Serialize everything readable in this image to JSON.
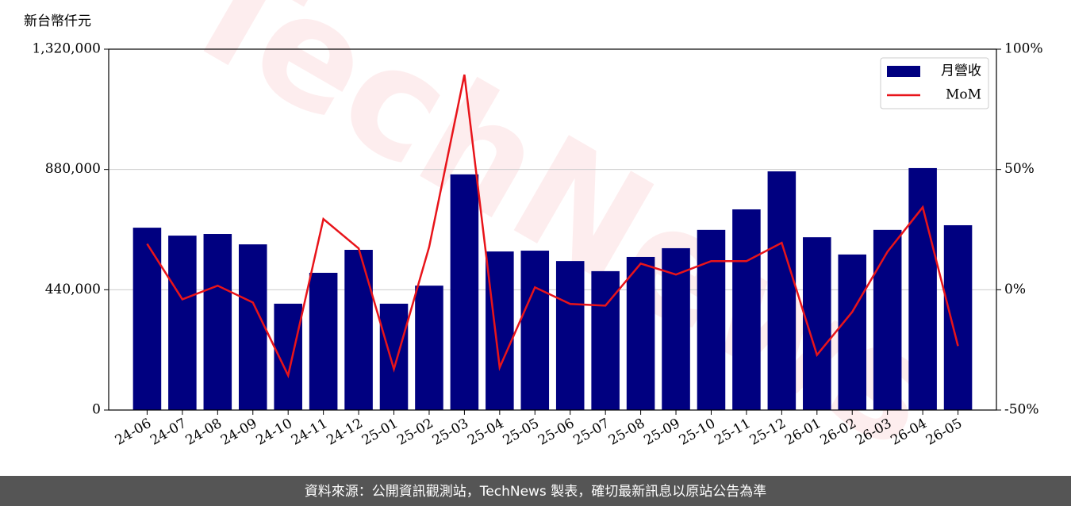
{
  "chart_data": {
    "type": "bar-line",
    "y_label": "新台幣仟元",
    "watermark": "TechNews",
    "footer": "資料來源：公開資訊觀測站，TechNews 製表，確切最新訊息以原站公告為準",
    "categories": [
      "24-06",
      "24-07",
      "24-08",
      "24-09",
      "24-10",
      "24-11",
      "24-12",
      "25-01",
      "25-02",
      "25-03",
      "25-04",
      "25-05",
      "25-06",
      "25-07",
      "25-08",
      "25-09",
      "25-10",
      "25-11",
      "25-12",
      "26-01",
      "26-02",
      "26-03",
      "26-04",
      "26-05"
    ],
    "series": [
      {
        "name": "月營收",
        "type": "bar",
        "color": "#000080",
        "values": [
          667000,
          638000,
          644000,
          606000,
          389000,
          502000,
          586000,
          389000,
          455000,
          862000,
          580000,
          583000,
          545000,
          508000,
          560000,
          592000,
          659000,
          734000,
          873000,
          632000,
          569000,
          659000,
          885000,
          676000
        ]
      },
      {
        "name": "MoM",
        "type": "line",
        "axis": "y2",
        "color": "#e8141a",
        "values": [
          19.1,
          -4.0,
          1.7,
          -5.3,
          -35.6,
          29.4,
          17.2,
          -33.0,
          17.8,
          89.4,
          -32.3,
          1.0,
          -5.9,
          -6.6,
          10.9,
          6.3,
          11.9,
          11.9,
          19.5,
          -27.1,
          -9.2,
          15.8,
          34.3,
          -23.4
        ]
      }
    ],
    "ylim": [
      0,
      1320000
    ],
    "yticks": [
      {
        "value": 0,
        "label": "0"
      },
      {
        "value": 440000,
        "label": "440,000"
      },
      {
        "value": 880000,
        "label": "880,000"
      },
      {
        "value": 1320000,
        "label": "1,320,000"
      }
    ],
    "y2lim": [
      -50,
      100
    ],
    "y2ticks": [
      {
        "value": -50,
        "label": "-50%"
      },
      {
        "value": 0,
        "label": "0%"
      },
      {
        "value": 50,
        "label": "50%"
      },
      {
        "value": 100,
        "label": "100%"
      }
    ],
    "grid": true,
    "legend": "upper right"
  }
}
